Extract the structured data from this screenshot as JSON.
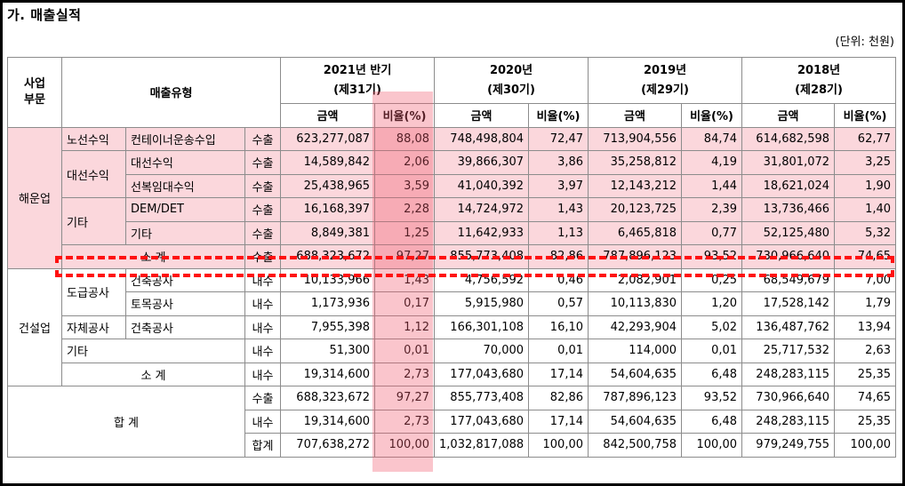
{
  "title": "가. 매출실적",
  "unit": "(단위: 천원)",
  "header": {
    "division": "사업\n부문",
    "sales_type": "매출유형",
    "periods": [
      {
        "year": "2021년 반기",
        "term": "(제31기)"
      },
      {
        "year": "2020년",
        "term": "(제30기)"
      },
      {
        "year": "2019년",
        "term": "(제29기)"
      },
      {
        "year": "2018년",
        "term": "(제28기)"
      }
    ],
    "amount": "금액",
    "ratio": "비율(%)"
  },
  "groups": {
    "shipping": "해운업",
    "construction": "건설업",
    "total": "합 계"
  },
  "rows": [
    {
      "c1": "노선수익",
      "c2": "컨테이너운송수입",
      "kind": "수출",
      "v": [
        "623,277,087",
        "88,08",
        "748,498,804",
        "72,47",
        "713,904,556",
        "84,74",
        "614,682,598",
        "62,77"
      ]
    },
    {
      "c1": "대선수익",
      "c2": "대선수익",
      "kind": "수출",
      "v": [
        "14,589,842",
        "2,06",
        "39,866,307",
        "3,86",
        "35,258,812",
        "4,19",
        "31,801,072",
        "3,25"
      ]
    },
    {
      "c2": "선복임대수익",
      "kind": "수출",
      "v": [
        "25,438,965",
        "3,59",
        "41,040,392",
        "3,97",
        "12,143,212",
        "1,44",
        "18,621,024",
        "1,90"
      ]
    },
    {
      "c1": "기타",
      "c2": "DEM/DET",
      "kind": "수출",
      "v": [
        "16,168,397",
        "2,28",
        "14,724,972",
        "1,43",
        "20,123,725",
        "2,39",
        "13,736,466",
        "1,40"
      ]
    },
    {
      "c2": "기타",
      "kind": "수출",
      "v": [
        "8,849,381",
        "1,25",
        "11,642,933",
        "1,13",
        "6,465,818",
        "0,77",
        "52,125,480",
        "5,32"
      ]
    },
    {
      "c1": "소 계",
      "kind": "수출",
      "v": [
        "688,323,672",
        "97,27",
        "855,773,408",
        "82,86",
        "787,896,123",
        "93,52",
        "730,966,640",
        "74,65"
      ]
    },
    {
      "c1": "도급공사",
      "c2": "건축공사",
      "kind": "내수",
      "v": [
        "10,133,966",
        "1,43",
        "4,756,592",
        "0,46",
        "2,082,901",
        "0,25",
        "68,549,679",
        "7,00"
      ]
    },
    {
      "c2": "토목공사",
      "kind": "내수",
      "v": [
        "1,173,936",
        "0,17",
        "5,915,980",
        "0,57",
        "10,113,830",
        "1,20",
        "17,528,142",
        "1,79"
      ]
    },
    {
      "c1": "자체공사",
      "c2": "건축공사",
      "kind": "내수",
      "v": [
        "7,955,398",
        "1,12",
        "166,301,108",
        "16,10",
        "42,293,904",
        "5,02",
        "136,487,762",
        "13,94"
      ]
    },
    {
      "c1": "기타",
      "kind": "내수",
      "v": [
        "51,300",
        "0,01",
        "70,000",
        "0,01",
        "114,000",
        "0,01",
        "25,717,532",
        "2,63"
      ]
    },
    {
      "c1": "소 계",
      "kind": "내수",
      "v": [
        "19,314,600",
        "2,73",
        "177,043,680",
        "17,14",
        "54,604,635",
        "6,48",
        "248,283,115",
        "25,35"
      ]
    },
    {
      "kind": "수출",
      "v": [
        "688,323,672",
        "97,27",
        "855,773,408",
        "82,86",
        "787,896,123",
        "93,52",
        "730,966,640",
        "74,65"
      ]
    },
    {
      "kind": "내수",
      "v": [
        "19,314,600",
        "2,73",
        "177,043,680",
        "17,14",
        "54,604,635",
        "6,48",
        "248,283,115",
        "25,35"
      ]
    },
    {
      "kind": "합계",
      "v": [
        "707,638,272",
        "100,00",
        "1,032,817,088",
        "100,00",
        "842,500,758",
        "100,00",
        "979,249,755",
        "100,00"
      ]
    }
  ],
  "colors": {
    "shipping_fill": "#fbd7dc",
    "highlight_column": "#f05a6e",
    "dashed_box": "#ff1010"
  }
}
